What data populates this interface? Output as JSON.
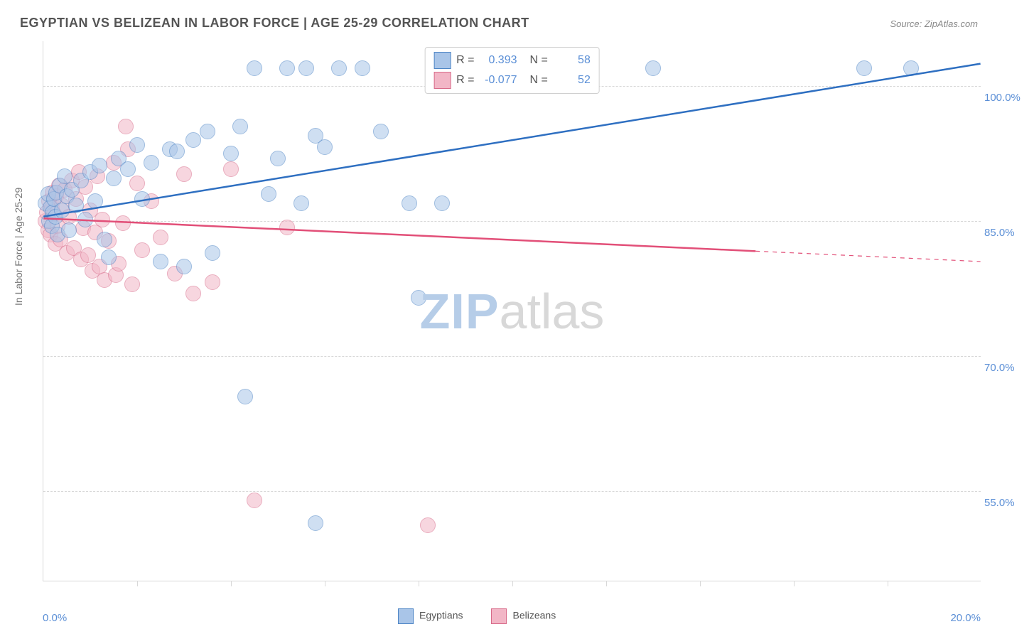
{
  "chart": {
    "type": "scatter-correlation",
    "title": "EGYPTIAN VS BELIZEAN IN LABOR FORCE | AGE 25-29 CORRELATION CHART",
    "source": "Source: ZipAtlas.com",
    "watermark_part1": "ZIP",
    "watermark_part2": "atlas",
    "background_color": "#ffffff",
    "grid_color": "#d8d8d8",
    "title_color": "#555555",
    "title_fontsize": 18,
    "x_axis": {
      "min": 0.0,
      "max": 20.0,
      "left_label": "0.0%",
      "right_label": "20.0%",
      "tick_step": 2.0,
      "label_color": "#5b8fd6"
    },
    "y_axis": {
      "min": 45.0,
      "max": 105.0,
      "label": "In Labor Force | Age 25-29",
      "label_color": "#777777",
      "tick_values": [
        55.0,
        70.0,
        85.0,
        100.0
      ],
      "tick_labels": [
        "55.0%",
        "70.0%",
        "85.0%",
        "100.0%"
      ],
      "tick_label_color": "#5b8fd6"
    },
    "series": [
      {
        "name": "Egyptians",
        "fill": "#a9c5e8",
        "fill_opacity": 0.55,
        "stroke": "#4f86c6",
        "line_color": "#2e6fc1",
        "line_width": 2.5,
        "marker_radius": 11,
        "R": "0.393",
        "N": "58",
        "trend": {
          "x1": 0.0,
          "y1": 85.5,
          "x2": 20.0,
          "y2": 102.5,
          "dash_from_x": null
        },
        "points": [
          [
            0.05,
            87
          ],
          [
            0.1,
            88
          ],
          [
            0.12,
            85
          ],
          [
            0.15,
            86.5
          ],
          [
            0.18,
            84.5
          ],
          [
            0.2,
            86
          ],
          [
            0.22,
            87.5
          ],
          [
            0.25,
            85.5
          ],
          [
            0.28,
            88.2
          ],
          [
            0.3,
            83.5
          ],
          [
            0.35,
            89
          ],
          [
            0.4,
            86.2
          ],
          [
            0.45,
            90
          ],
          [
            0.5,
            87.8
          ],
          [
            0.55,
            84
          ],
          [
            0.6,
            88.5
          ],
          [
            0.7,
            86.8
          ],
          [
            0.8,
            89.5
          ],
          [
            0.9,
            85.2
          ],
          [
            1.0,
            90.5
          ],
          [
            1.1,
            87.2
          ],
          [
            1.2,
            91.2
          ],
          [
            1.3,
            83
          ],
          [
            1.4,
            81
          ],
          [
            1.5,
            89.8
          ],
          [
            1.6,
            92
          ],
          [
            1.8,
            90.8
          ],
          [
            2.0,
            93.5
          ],
          [
            2.1,
            87.5
          ],
          [
            2.3,
            91.5
          ],
          [
            2.5,
            80.5
          ],
          [
            2.7,
            93
          ],
          [
            2.85,
            92.8
          ],
          [
            3.0,
            80
          ],
          [
            3.2,
            94
          ],
          [
            3.5,
            95
          ],
          [
            3.6,
            81.5
          ],
          [
            4.0,
            92.5
          ],
          [
            4.2,
            95.5
          ],
          [
            4.5,
            102
          ],
          [
            4.8,
            88
          ],
          [
            5.0,
            92
          ],
          [
            5.2,
            102
          ],
          [
            5.5,
            87
          ],
          [
            5.6,
            102
          ],
          [
            5.8,
            94.5
          ],
          [
            6.0,
            93.2
          ],
          [
            6.3,
            102
          ],
          [
            6.8,
            102
          ],
          [
            7.2,
            95
          ],
          [
            7.8,
            87
          ],
          [
            8.0,
            76.5
          ],
          [
            4.3,
            65.5
          ],
          [
            5.8,
            51.5
          ],
          [
            13.0,
            102
          ],
          [
            17.5,
            102
          ],
          [
            18.5,
            102
          ],
          [
            8.5,
            87
          ]
        ]
      },
      {
        "name": "Belizeans",
        "fill": "#f2b6c6",
        "fill_opacity": 0.55,
        "stroke": "#d86b8a",
        "line_color": "#e24f78",
        "line_width": 2.5,
        "marker_radius": 11,
        "R": "-0.077",
        "N": "52",
        "trend": {
          "x1": 0.0,
          "y1": 85.3,
          "x2": 20.0,
          "y2": 80.5,
          "dash_from_x": 15.2
        },
        "points": [
          [
            0.05,
            85
          ],
          [
            0.08,
            86
          ],
          [
            0.1,
            84
          ],
          [
            0.12,
            87.2
          ],
          [
            0.15,
            83.5
          ],
          [
            0.18,
            86.5
          ],
          [
            0.2,
            88.2
          ],
          [
            0.22,
            85.8
          ],
          [
            0.25,
            82.5
          ],
          [
            0.28,
            87.8
          ],
          [
            0.3,
            84.5
          ],
          [
            0.33,
            89
          ],
          [
            0.36,
            83
          ],
          [
            0.4,
            86.8
          ],
          [
            0.45,
            88.5
          ],
          [
            0.5,
            81.5
          ],
          [
            0.55,
            85.5
          ],
          [
            0.6,
            89.5
          ],
          [
            0.65,
            82
          ],
          [
            0.7,
            87.5
          ],
          [
            0.75,
            90.5
          ],
          [
            0.8,
            80.8
          ],
          [
            0.85,
            84.2
          ],
          [
            0.9,
            88.8
          ],
          [
            0.95,
            81.2
          ],
          [
            1.0,
            86.2
          ],
          [
            1.05,
            79.5
          ],
          [
            1.1,
            83.8
          ],
          [
            1.15,
            90
          ],
          [
            1.2,
            80
          ],
          [
            1.25,
            85.2
          ],
          [
            1.3,
            78.5
          ],
          [
            1.4,
            82.8
          ],
          [
            1.5,
            91.5
          ],
          [
            1.55,
            79
          ],
          [
            1.6,
            80.3
          ],
          [
            1.7,
            84.8
          ],
          [
            1.75,
            95.5
          ],
          [
            1.8,
            93
          ],
          [
            1.9,
            78
          ],
          [
            2.0,
            89.2
          ],
          [
            2.1,
            81.8
          ],
          [
            2.3,
            87.2
          ],
          [
            2.5,
            83.2
          ],
          [
            2.8,
            79.2
          ],
          [
            3.0,
            90.2
          ],
          [
            3.2,
            77
          ],
          [
            3.6,
            78.2
          ],
          [
            4.0,
            90.8
          ],
          [
            4.5,
            54
          ],
          [
            5.2,
            84.3
          ],
          [
            8.2,
            51.2
          ]
        ]
      }
    ],
    "legend_bottom": [
      {
        "label": "Egyptians",
        "fill": "#a9c5e8",
        "stroke": "#4f86c6"
      },
      {
        "label": "Belizeans",
        "fill": "#f2b6c6",
        "stroke": "#d86b8a"
      }
    ]
  }
}
